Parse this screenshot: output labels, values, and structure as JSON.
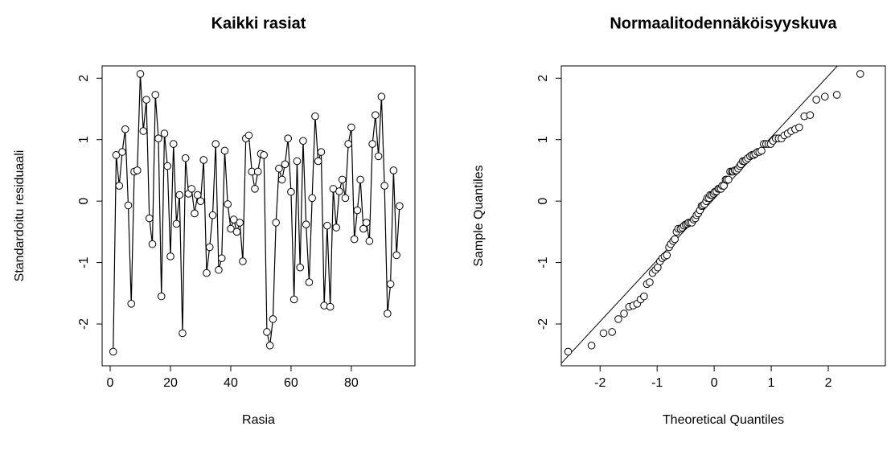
{
  "chart_data": [
    {
      "type": "line",
      "title": "Kaikki rasiat",
      "x_label": "Rasia",
      "y_label": "Standardoitu residuaali",
      "x": [
        1,
        2,
        3,
        4,
        5,
        6,
        7,
        8,
        9,
        10,
        11,
        12,
        13,
        14,
        15,
        16,
        17,
        18,
        19,
        20,
        21,
        22,
        23,
        24,
        25,
        26,
        27,
        28,
        29,
        30,
        31,
        32,
        33,
        34,
        35,
        36,
        37,
        38,
        39,
        40,
        41,
        42,
        43,
        44,
        45,
        46,
        47,
        48,
        49,
        50,
        51,
        52,
        53,
        54,
        55,
        56,
        57,
        58,
        59,
        60,
        61,
        62,
        63,
        64,
        65,
        66,
        67,
        68,
        69,
        70,
        71,
        72,
        73,
        74,
        75,
        76,
        77,
        78,
        79,
        80,
        81,
        82,
        83,
        84,
        85,
        86,
        87,
        88,
        89,
        90,
        91,
        92,
        93,
        94,
        95,
        96
      ],
      "values": [
        -2.45,
        0.75,
        0.25,
        0.8,
        1.17,
        -0.07,
        -1.67,
        0.48,
        0.5,
        2.07,
        1.14,
        1.65,
        -0.28,
        -0.7,
        1.73,
        1.02,
        -1.55,
        1.1,
        0.57,
        -0.9,
        0.93,
        -0.37,
        0.1,
        -2.15,
        0.7,
        0.12,
        0.2,
        -0.2,
        0.1,
        0.0,
        0.67,
        -1.17,
        -0.75,
        -0.23,
        0.93,
        -1.12,
        -0.93,
        0.82,
        -0.05,
        -0.45,
        -0.3,
        -0.5,
        -0.35,
        -0.98,
        1.02,
        1.07,
        0.48,
        0.2,
        0.48,
        0.77,
        0.75,
        -2.13,
        -2.35,
        -1.92,
        -0.35,
        0.53,
        0.35,
        0.6,
        1.02,
        0.15,
        -1.6,
        0.65,
        -1.08,
        0.98,
        -0.38,
        -1.32,
        0.05,
        1.38,
        0.65,
        0.8,
        -1.7,
        -0.4,
        -1.72,
        0.2,
        -0.43,
        0.16,
        0.35,
        0.05,
        0.93,
        1.2,
        -0.62,
        -0.15,
        0.35,
        -0.45,
        -0.35,
        -0.65,
        0.93,
        1.4,
        0.73,
        1.7,
        0.25,
        -1.83,
        -1.35,
        0.5,
        -0.88,
        -0.08
      ],
      "color": "#000000",
      "xlim": [
        -2.67,
        101.1
      ],
      "xticks": [
        0,
        20,
        40,
        60,
        80
      ],
      "ylim": [
        -2.68,
        2.2
      ],
      "yticks": [
        -2,
        -1,
        0,
        1,
        2
      ]
    },
    {
      "type": "scatter",
      "title": "Normaalitodennäköisyyskuva",
      "x_label": "Theoretical Quantiles",
      "y_label": "Sample Quantiles",
      "x": [
        -2.56,
        -2.15,
        -1.94,
        -1.79,
        -1.68,
        -1.58,
        -1.49,
        -1.42,
        -1.35,
        -1.29,
        -1.23,
        -1.18,
        -1.13,
        -1.08,
        -1.03,
        -0.99,
        -0.95,
        -0.91,
        -0.87,
        -0.83,
        -0.79,
        -0.76,
        -0.72,
        -0.69,
        -0.66,
        -0.63,
        -0.59,
        -0.56,
        -0.53,
        -0.5,
        -0.47,
        -0.45,
        -0.42,
        -0.39,
        -0.36,
        -0.33,
        -0.31,
        -0.28,
        -0.25,
        -0.22,
        -0.2,
        -0.17,
        -0.14,
        -0.12,
        -0.09,
        -0.07,
        -0.04,
        -0.01,
        0.01,
        0.04,
        0.07,
        0.09,
        0.12,
        0.14,
        0.17,
        0.2,
        0.22,
        0.25,
        0.28,
        0.31,
        0.33,
        0.36,
        0.39,
        0.42,
        0.45,
        0.47,
        0.5,
        0.53,
        0.56,
        0.59,
        0.63,
        0.66,
        0.69,
        0.72,
        0.76,
        0.79,
        0.83,
        0.87,
        0.91,
        0.95,
        0.99,
        1.03,
        1.08,
        1.13,
        1.18,
        1.23,
        1.29,
        1.35,
        1.42,
        1.49,
        1.58,
        1.68,
        1.79,
        1.94,
        2.15,
        2.56
      ],
      "values": [
        -2.45,
        -2.35,
        -2.15,
        -2.13,
        -1.92,
        -1.83,
        -1.72,
        -1.7,
        -1.67,
        -1.6,
        -1.55,
        -1.35,
        -1.32,
        -1.17,
        -1.12,
        -1.08,
        -0.98,
        -0.93,
        -0.9,
        -0.88,
        -0.75,
        -0.7,
        -0.65,
        -0.62,
        -0.5,
        -0.45,
        -0.45,
        -0.43,
        -0.4,
        -0.38,
        -0.37,
        -0.35,
        -0.35,
        -0.35,
        -0.3,
        -0.28,
        -0.23,
        -0.2,
        -0.15,
        -0.08,
        -0.07,
        -0.05,
        0.0,
        0.05,
        0.05,
        0.1,
        0.1,
        0.12,
        0.15,
        0.16,
        0.2,
        0.2,
        0.2,
        0.25,
        0.25,
        0.35,
        0.35,
        0.35,
        0.48,
        0.48,
        0.48,
        0.5,
        0.5,
        0.53,
        0.57,
        0.6,
        0.65,
        0.65,
        0.67,
        0.7,
        0.73,
        0.75,
        0.75,
        0.77,
        0.8,
        0.8,
        0.82,
        0.93,
        0.93,
        0.93,
        0.93,
        0.98,
        1.02,
        1.02,
        1.02,
        1.07,
        1.1,
        1.14,
        1.17,
        1.2,
        1.38,
        1.4,
        1.65,
        1.7,
        1.73,
        2.07
      ],
      "color": "#000000",
      "line": {
        "intercept": 0.04,
        "slope": 1.0
      },
      "xlim": [
        -2.68,
        3.0
      ],
      "xticks": [
        -2,
        -1,
        0,
        1,
        2
      ],
      "ylim": [
        -2.68,
        2.2
      ],
      "yticks": [
        -2,
        -1,
        0,
        1,
        2
      ]
    }
  ]
}
